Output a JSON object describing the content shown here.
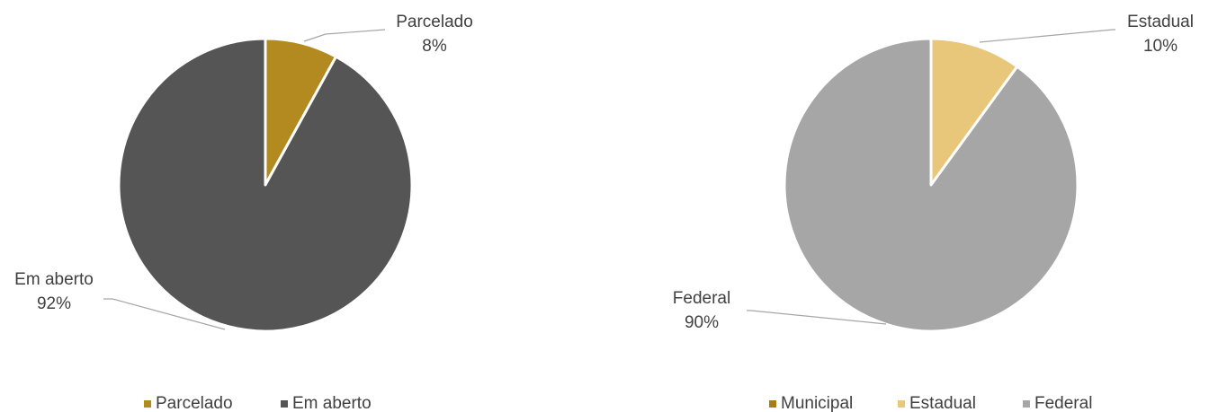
{
  "chart_data": [
    {
      "type": "pie",
      "categories": [
        "Parcelado",
        "Em aberto"
      ],
      "values": [
        8,
        92
      ],
      "value_labels": [
        "8%",
        "92%"
      ],
      "colors": [
        "#b38a1f",
        "#555555"
      ],
      "legend": "bottom"
    },
    {
      "type": "pie",
      "categories": [
        "Municipal",
        "Estadual",
        "Federal"
      ],
      "values": [
        0,
        10,
        90
      ],
      "value_labels": [
        null,
        "10%",
        "90%"
      ],
      "colors": [
        "#a87b1a",
        "#e8c77a",
        "#a6a6a6"
      ],
      "legend": "bottom"
    }
  ]
}
